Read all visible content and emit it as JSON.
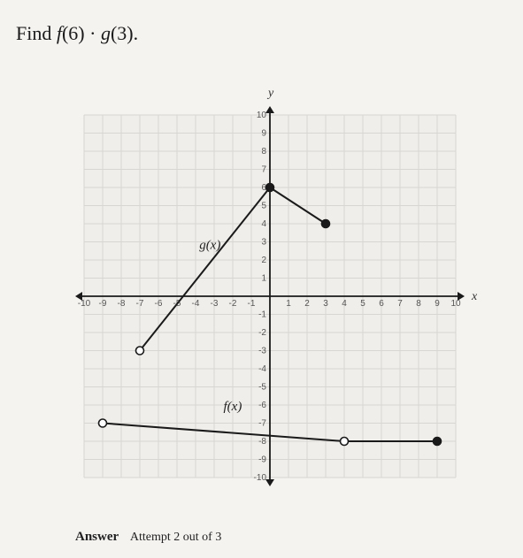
{
  "question": {
    "text": "Find f(6) · g(3)."
  },
  "answer": {
    "label": "Answer",
    "attempt": "Attempt 2 out of 3"
  },
  "chart": {
    "type": "line",
    "xlim": [
      -10,
      10
    ],
    "ylim": [
      -10,
      10
    ],
    "x_ticks": [
      -10,
      -9,
      -8,
      -7,
      -6,
      -5,
      -4,
      -3,
      -2,
      -1,
      1,
      2,
      3,
      4,
      5,
      6,
      7,
      8,
      9,
      10
    ],
    "y_ticks": [
      -10,
      -9,
      -8,
      -7,
      -6,
      -5,
      -4,
      -3,
      -2,
      -1,
      1,
      2,
      3,
      4,
      5,
      6,
      7,
      8,
      9,
      10
    ],
    "grid_color": "#d8d6d2",
    "grid_bg": "#f0eeea",
    "page_bg": "#f5f3f0",
    "axis_color": "#1a1a1a",
    "line_color": "#1a1a1a",
    "point_fill_closed": "#1a1a1a",
    "point_fill_open": "#ffffff",
    "line_width": 2,
    "point_radius": 4.5,
    "x_axis_label": "x",
    "y_axis_label": "y",
    "series": {
      "g": {
        "label": "g(x)",
        "label_pos": {
          "x": -3.8,
          "y": 2.6
        },
        "segments": [
          {
            "from": {
              "x": -7,
              "y": -3,
              "open": true
            },
            "to": {
              "x": 0,
              "y": 6,
              "open": false
            }
          },
          {
            "from": {
              "x": 0,
              "y": 6,
              "open": false
            },
            "to": {
              "x": 3,
              "y": 4,
              "open": false
            }
          }
        ]
      },
      "f": {
        "label": "f(x)",
        "label_pos": {
          "x": -2.5,
          "y": -6.3
        },
        "segments": [
          {
            "from": {
              "x": -9,
              "y": -7,
              "open": true
            },
            "to": {
              "x": 4,
              "y": -8,
              "open": true
            }
          },
          {
            "from": {
              "x": 4,
              "y": -8,
              "open": true
            },
            "to": {
              "x": 9,
              "y": -8,
              "open": false
            }
          }
        ]
      }
    },
    "tick_fontsize": 10,
    "label_fontsize": 15,
    "axis_label_fontsize": 14
  }
}
